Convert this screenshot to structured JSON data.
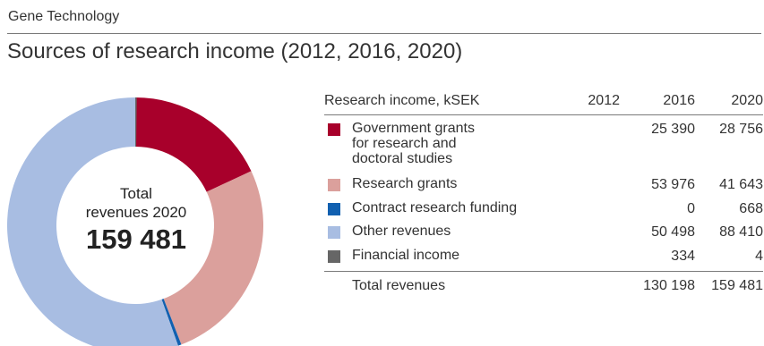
{
  "header": {
    "section": "Gene Technology",
    "title": "Sources of research income (2012, 2016, 2020)"
  },
  "donut": {
    "center_label": "Total\nrevenues 2020",
    "center_value": "159 481"
  },
  "table": {
    "columns": [
      "Research income, kSEK",
      "2012",
      "2016",
      "2020"
    ],
    "rows": [
      {
        "label": "Government grants\nfor research and\ndoctoral studies",
        "color": "#a8002b",
        "v2012": "",
        "v2016": "25 390",
        "v2020": "28 756"
      },
      {
        "label": "Research grants",
        "color": "#dba09c",
        "v2012": "",
        "v2016": "53 976",
        "v2020": "41 643"
      },
      {
        "label": "Contract research funding",
        "color": "#1160b0",
        "v2012": "",
        "v2016": "0",
        "v2020": "668"
      },
      {
        "label": "Other revenues",
        "color": "#a8bde2",
        "v2012": "",
        "v2016": "50 498",
        "v2020": "88 410"
      },
      {
        "label": "Financial income",
        "color": "#666666",
        "v2012": "",
        "v2016": "334",
        "v2020": "4"
      }
    ],
    "total": {
      "label": "Total revenues",
      "v2012": "",
      "v2016": "130 198",
      "v2020": "159 481"
    }
  },
  "chart_data": {
    "type": "pie",
    "title": "Sources of research income (2012, 2016, 2020)",
    "categories": [
      "Government grants for research and doctoral studies",
      "Research grants",
      "Contract research funding",
      "Other revenues",
      "Financial income"
    ],
    "values": [
      28756,
      41643,
      668,
      88410,
      4
    ],
    "colors": [
      "#a8002b",
      "#dba09c",
      "#1160b0",
      "#a8bde2",
      "#666666"
    ],
    "total": 159481
  }
}
